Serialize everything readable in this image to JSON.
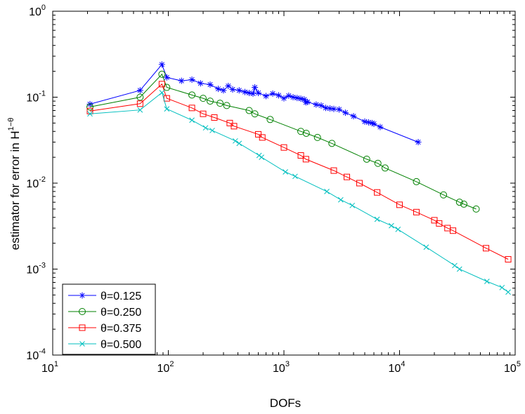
{
  "chart_data": {
    "type": "line",
    "scale": "loglog",
    "xlabel": "DOFs",
    "ylabel_base": "estimator for error in H",
    "ylabel_sup": "1−θ",
    "xlim": [
      10,
      100000
    ],
    "ylim": [
      0.0001,
      1
    ],
    "x_ticks": [
      {
        "base": "10",
        "exp": "1"
      },
      {
        "base": "10",
        "exp": "2"
      },
      {
        "base": "10",
        "exp": "3"
      },
      {
        "base": "10",
        "exp": "4"
      },
      {
        "base": "10",
        "exp": "5"
      }
    ],
    "y_ticks": [
      {
        "base": "10",
        "exp": "-4"
      },
      {
        "base": "10",
        "exp": "-3"
      },
      {
        "base": "10",
        "exp": "-2"
      },
      {
        "base": "10",
        "exp": "-1"
      },
      {
        "base": "10",
        "exp": "0"
      }
    ],
    "legend_position": "bottom-left",
    "series": [
      {
        "name": "θ=0.125",
        "color": "#0000ff",
        "marker": "star",
        "x": [
          21,
          57,
          88,
          97,
          130,
          160,
          190,
          230,
          270,
          300,
          330,
          360,
          410,
          460,
          500,
          540,
          560,
          600,
          700,
          800,
          900,
          1000,
          1100,
          1200,
          1300,
          1400,
          1500,
          1550,
          1600,
          1900,
          2100,
          2300,
          2500,
          2700,
          3000,
          3400,
          4000,
          5000,
          5400,
          5800,
          6000,
          6800,
          14500
        ],
        "y": [
          0.083,
          0.12,
          0.24,
          0.17,
          0.155,
          0.16,
          0.145,
          0.14,
          0.125,
          0.12,
          0.135,
          0.123,
          0.12,
          0.115,
          0.112,
          0.11,
          0.13,
          0.112,
          0.103,
          0.11,
          0.105,
          0.097,
          0.104,
          0.1,
          0.098,
          0.096,
          0.094,
          0.087,
          0.088,
          0.082,
          0.08,
          0.075,
          0.074,
          0.073,
          0.072,
          0.066,
          0.06,
          0.052,
          0.051,
          0.05,
          0.049,
          0.045,
          0.03
        ]
      },
      {
        "name": "θ=0.250",
        "color": "#008000",
        "marker": "circle",
        "x": [
          21,
          57,
          88,
          97,
          160,
          200,
          230,
          280,
          320,
          500,
          560,
          760,
          1400,
          1560,
          1950,
          2600,
          5200,
          6500,
          7500,
          14000,
          24000,
          33000,
          36000,
          46000
        ],
        "y": [
          0.077,
          0.1,
          0.185,
          0.13,
          0.106,
          0.097,
          0.09,
          0.085,
          0.08,
          0.07,
          0.064,
          0.055,
          0.04,
          0.038,
          0.034,
          0.029,
          0.019,
          0.017,
          0.015,
          0.0104,
          0.0073,
          0.006,
          0.0057,
          0.005
        ]
      },
      {
        "name": "θ=0.375",
        "color": "#ff0000",
        "marker": "square",
        "x": [
          21,
          57,
          88,
          97,
          160,
          200,
          250,
          340,
          370,
          600,
          650,
          1000,
          1400,
          1550,
          2700,
          3500,
          4500,
          6400,
          10000,
          14000,
          20000,
          22000,
          26000,
          29000,
          56000,
          87000
        ],
        "y": [
          0.069,
          0.084,
          0.142,
          0.097,
          0.075,
          0.064,
          0.058,
          0.05,
          0.046,
          0.037,
          0.034,
          0.026,
          0.021,
          0.019,
          0.014,
          0.0118,
          0.01,
          0.0078,
          0.0056,
          0.0046,
          0.0037,
          0.0034,
          0.003,
          0.0028,
          0.00175,
          0.0013
        ]
      },
      {
        "name": "θ=0.500",
        "color": "#00bfbf",
        "marker": "x",
        "x": [
          21,
          57,
          88,
          97,
          160,
          210,
          240,
          380,
          410,
          610,
          640,
          1030,
          1250,
          2350,
          3100,
          3900,
          6400,
          8500,
          9700,
          17000,
          30000,
          33000,
          57000,
          77000,
          87000
        ],
        "y": [
          0.064,
          0.071,
          0.113,
          0.073,
          0.054,
          0.044,
          0.041,
          0.031,
          0.029,
          0.021,
          0.02,
          0.0135,
          0.012,
          0.008,
          0.0064,
          0.0055,
          0.0038,
          0.0032,
          0.0029,
          0.0018,
          0.0011,
          0.001,
          0.00072,
          0.00061,
          0.00054
        ]
      }
    ]
  }
}
